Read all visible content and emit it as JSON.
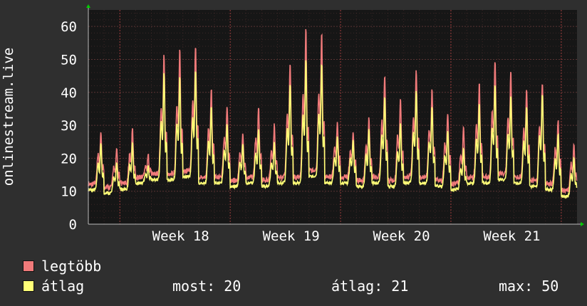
{
  "ylabel": "onlinestream.live",
  "colors": {
    "background": "#2f2f2f",
    "plot_background": "#161616",
    "grid": "#5a3434",
    "max_series": "#f07a7a",
    "avg_series": "#ffff77",
    "text": "#ffffff",
    "arrow": "#00cc00"
  },
  "legend": {
    "max_label": "legtöbb",
    "avg_label": "átlag",
    "now_text": "most: 20",
    "avg_text": "átlag: 21",
    "max_text": "max: 50"
  },
  "chart_data": {
    "type": "area",
    "x_tick_labels": [
      "Week 18",
      "Week 19",
      "Week 20",
      "Week 21"
    ],
    "x_ticks": [
      5.5,
      12.5,
      19.5,
      26.5
    ],
    "xlim": [
      0,
      31
    ],
    "y_ticks": [
      0,
      10,
      20,
      30,
      40,
      50,
      60
    ],
    "ylim": [
      0,
      65
    ],
    "ylabel": "onlinestream.live",
    "grid": true,
    "daily_peak_avg": [
      24,
      18,
      24,
      17,
      45,
      44,
      46,
      35,
      30,
      24,
      28,
      24,
      42,
      49,
      48,
      26,
      25,
      28,
      38,
      30,
      40,
      35,
      28,
      22,
      36,
      42,
      38,
      35,
      39,
      27,
      20
    ],
    "daily_peak_max": [
      27,
      22,
      28,
      20,
      50,
      52,
      53,
      40,
      35,
      27,
      34,
      29,
      48,
      58,
      57,
      30,
      27,
      31,
      44,
      37,
      46,
      40,
      33,
      28,
      42,
      49,
      45,
      40,
      42,
      31,
      24
    ],
    "daily_trough": [
      10,
      9,
      10,
      12,
      13,
      13,
      14,
      12,
      12,
      11,
      12,
      11,
      12,
      12,
      14,
      12,
      12,
      11,
      12,
      11,
      12,
      12,
      11,
      10,
      12,
      12,
      13,
      12,
      11,
      10,
      8
    ],
    "series": [
      {
        "name": "legtöbb",
        "color": "#f07a7a",
        "style": "filled area"
      },
      {
        "name": "átlag",
        "color": "#ffff77",
        "style": "line"
      }
    ]
  }
}
